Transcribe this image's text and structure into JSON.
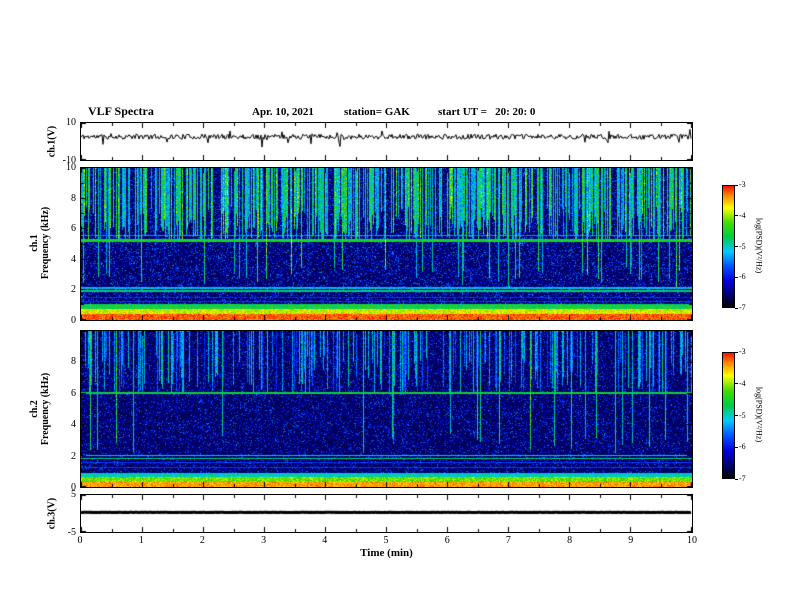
{
  "header": {
    "title": "VLF Spectra",
    "date": "Apr. 10, 2021",
    "station": "station= GAK",
    "start_ut": "start UT =   20: 20: 0"
  },
  "axes": {
    "time_label": "Time (min)",
    "time_range": [
      0,
      10
    ],
    "time_ticks": [
      0,
      1,
      2,
      3,
      4,
      5,
      6,
      7,
      8,
      9,
      10
    ]
  },
  "colormap": {
    "stops": [
      [
        0,
        "#000000"
      ],
      [
        0.1,
        "#000070"
      ],
      [
        0.22,
        "#0000e0"
      ],
      [
        0.34,
        "#0055ff"
      ],
      [
        0.46,
        "#00ccff"
      ],
      [
        0.58,
        "#00cc44"
      ],
      [
        0.7,
        "#44dd00"
      ],
      [
        0.82,
        "#ffff00"
      ],
      [
        0.92,
        "#ff8800"
      ],
      [
        1,
        "#ff1100"
      ]
    ]
  },
  "colorbar": {
    "label": "log(PSD)(V²/Hz)",
    "ticks": [
      -3,
      -4,
      -5,
      -6,
      -7
    ],
    "range": [
      -7,
      -3
    ]
  },
  "chart_data": [
    {
      "id": "ch1-voltage",
      "type": "line",
      "ylabel": "ch.1(V)",
      "ylim": [
        -10,
        10
      ],
      "yticks": [
        10,
        -10
      ],
      "xlim": [
        0,
        10
      ],
      "description": "Continuous noisy waveform fluctuating around +2 to +3 V for the full 10 minutes with frequent spikes reaching roughly -4 to +8 V",
      "gen": {
        "seed": 11,
        "mean": 2.6,
        "noise": 1.4,
        "spike_prob": 0.05,
        "spike": 4.5
      }
    },
    {
      "id": "ch1-spectrogram",
      "type": "heatmap",
      "ylabel_line1": "ch.1",
      "ylabel_line2": "Frequency (kHz)",
      "ylim": [
        0,
        10
      ],
      "yticks": [
        0,
        2,
        4,
        6,
        8,
        10
      ],
      "xlim": [
        0,
        10
      ],
      "zlabel": "log(PSD)(V²/Hz)",
      "zlim": [
        -7,
        -3
      ],
      "description": "VLF spectrogram 0-10 kHz over 10 min: intense red/yellow hiss band below ~1 kHz, narrow green tones near 1.9, 2.1 and 5.2 kHz, dense green/cyan vertical sferic streaks from 10 kHz down to ~5.3 kHz (a few reaching ~2.5 kHz), dark blue speckled background elsewhere",
      "gen": {
        "seed": 23,
        "base": 0.05,
        "base_var": 0.1,
        "speckle_prob": 0.18,
        "speckle": 0.16,
        "streaks": {
          "density": 0.55,
          "imin": 0.5,
          "imax": 0.85,
          "fmin": 5.3,
          "fspread": 2.2,
          "deep_density": 0.05
        },
        "bands": [
          {
            "f": [
              0,
              0.35
            ],
            "i": 0.95,
            "v": 0.12
          },
          {
            "f": [
              0.35,
              0.7
            ],
            "i": 0.8,
            "v": 0.18
          },
          {
            "f": [
              0.7,
              1.0
            ],
            "i": 0.6,
            "v": 0.18
          },
          {
            "f": [
              1.15,
              1.22
            ],
            "i": 0.3,
            "v": 0.1
          },
          {
            "f": [
              1.45,
              1.52
            ],
            "i": 0.28,
            "v": 0.1
          },
          {
            "f": [
              1.85,
              1.97
            ],
            "i": 0.55,
            "v": 0.12
          },
          {
            "f": [
              2.05,
              2.15
            ],
            "i": 0.45,
            "v": 0.12
          },
          {
            "f": [
              5.15,
              5.3
            ],
            "i": 0.62,
            "v": 0.1
          },
          {
            "f": [
              5.5,
              5.58
            ],
            "i": 0.4,
            "v": 0.12
          }
        ]
      }
    },
    {
      "id": "ch2-spectrogram",
      "type": "heatmap",
      "ylabel_line1": "ch.2",
      "ylabel_line2": "Frequency (kHz)",
      "ylim": [
        0,
        10
      ],
      "yticks": [
        0,
        2,
        4,
        6,
        8
      ],
      "xlim": [
        0,
        10
      ],
      "zlabel": "log(PSD)(V²/Hz)",
      "zlim": [
        -7,
        -3
      ],
      "description": "VLF spectrogram 0-10 kHz over 10 min: bright red/yellow hiss band below ~0.9 kHz, narrow tones near 1.8, 2.0 and 6.0 kHz, sparser blue/cyan vertical sferic streaks above ~6 kHz, darker speckled background than channel 1",
      "gen": {
        "seed": 41,
        "base": 0.05,
        "base_var": 0.09,
        "speckle_prob": 0.14,
        "speckle": 0.15,
        "streaks": {
          "density": 0.3,
          "imin": 0.35,
          "imax": 0.65,
          "fmin": 6.0,
          "fspread": 2.5,
          "deep_density": 0.04
        },
        "bands": [
          {
            "f": [
              0,
              0.3
            ],
            "i": 0.9,
            "v": 0.12
          },
          {
            "f": [
              0.3,
              0.6
            ],
            "i": 0.72,
            "v": 0.16
          },
          {
            "f": [
              0.6,
              0.9
            ],
            "i": 0.5,
            "v": 0.15
          },
          {
            "f": [
              1.2,
              1.27
            ],
            "i": 0.3,
            "v": 0.1
          },
          {
            "f": [
              1.5,
              1.57
            ],
            "i": 0.3,
            "v": 0.1
          },
          {
            "f": [
              1.75,
              1.87
            ],
            "i": 0.55,
            "v": 0.12
          },
          {
            "f": [
              1.95,
              2.05
            ],
            "i": 0.5,
            "v": 0.12
          },
          {
            "f": [
              5.95,
              6.1
            ],
            "i": 0.6,
            "v": 0.1
          }
        ]
      }
    },
    {
      "id": "ch3-voltage",
      "type": "line",
      "ylabel": "ch.3(V)",
      "ylim": [
        -5,
        5
      ],
      "yticks": [
        5,
        -5
      ],
      "xlim": [
        0,
        10
      ],
      "description": "Flat thick trace holding steady near +0.3 V for the entire 10-minute record",
      "gen": {
        "seed": 5,
        "mean": 0.3,
        "noise": 0.04,
        "spike_prob": 0,
        "spike": 0,
        "thick": 3
      }
    }
  ]
}
